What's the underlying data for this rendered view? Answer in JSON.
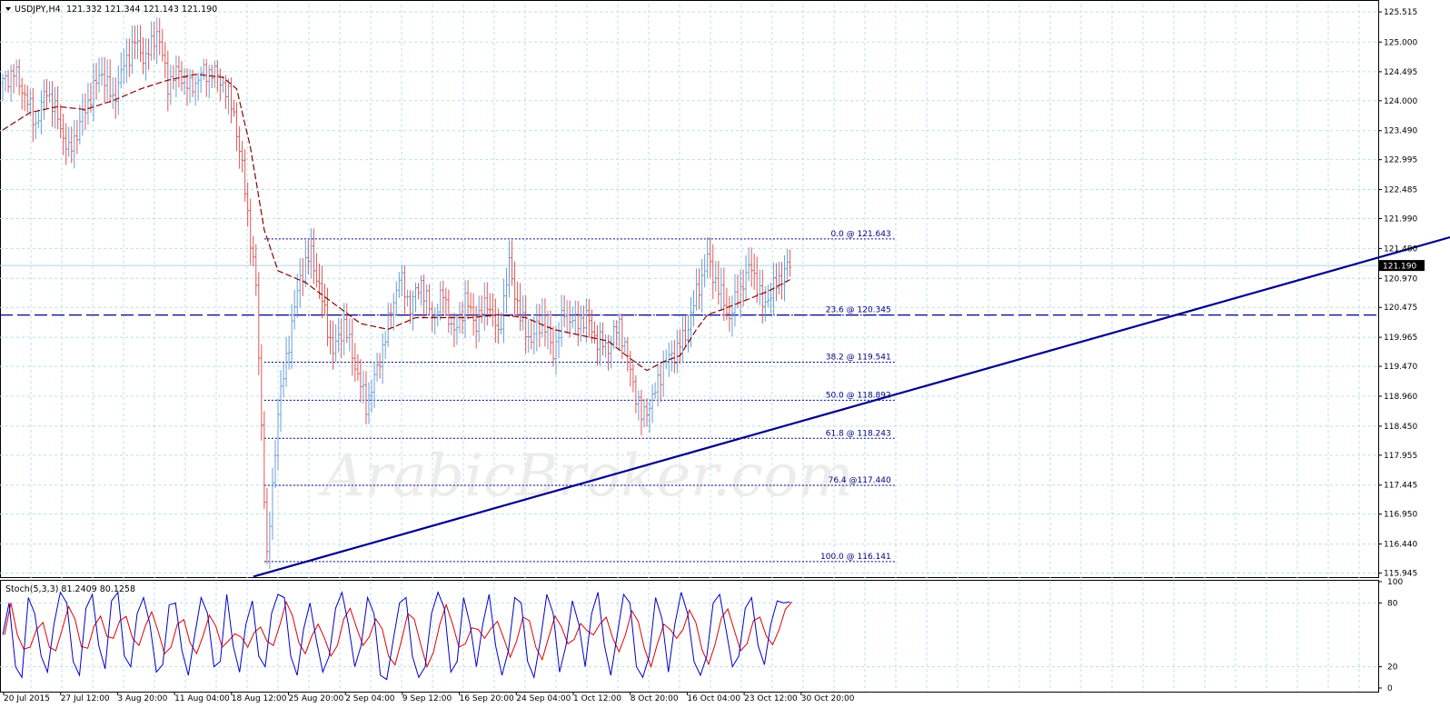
{
  "header": {
    "symbol": "USDJPY,H4",
    "ohlc": "121.332 121.344 121.143 121.190"
  },
  "watermark": "ArabicBroker.com",
  "colors": {
    "bull": "#6a9fd6",
    "bear": "#e05858",
    "ma": "#8b0000",
    "trend": "#00008b",
    "fib": "#000080",
    "grid": "#b8e0ea",
    "stoch_main": "#0000cc",
    "stoch_signal": "#e00000"
  },
  "chart_data": {
    "type": "candlestick",
    "price_axis": {
      "ticks": [
        "125.515",
        "125.000",
        "124.495",
        "124.000",
        "123.490",
        "122.995",
        "122.485",
        "121.990",
        "121.480",
        "120.970",
        "120.475",
        "119.965",
        "119.470",
        "118.960",
        "118.450",
        "117.955",
        "117.445",
        "116.950",
        "116.440",
        "115.945"
      ],
      "range": [
        115.86,
        125.64
      ],
      "current_price": "121.190"
    },
    "time_axis": {
      "labels": [
        "20 Jul 2015",
        "27 Jul 12:00",
        "3 Aug 20:00",
        "11 Aug 04:00",
        "18 Aug 12:00",
        "25 Aug 20:00",
        "2 Sep 04:00",
        "9 Sep 12:00",
        "16 Sep 20:00",
        "24 Sep 04:00",
        "1 Oct 12:00",
        "8 Oct 20:00",
        "16 Oct 04:00",
        "23 Oct 12:00",
        "30 Oct 20:00"
      ]
    },
    "price_path": [
      [
        0,
        124.3
      ],
      [
        4,
        124.5
      ],
      [
        8,
        124.1
      ],
      [
        12,
        123.6
      ],
      [
        16,
        124.2
      ],
      [
        20,
        123.7
      ],
      [
        24,
        123.1
      ],
      [
        28,
        123.6
      ],
      [
        32,
        124.1
      ],
      [
        36,
        124.5
      ],
      [
        40,
        124.0
      ],
      [
        44,
        124.6
      ],
      [
        48,
        125.0
      ],
      [
        52,
        124.7
      ],
      [
        56,
        125.2
      ],
      [
        60,
        124.3
      ],
      [
        64,
        124.5
      ],
      [
        68,
        124.2
      ],
      [
        72,
        124.45
      ],
      [
        76,
        124.5
      ],
      [
        80,
        124.3
      ],
      [
        84,
        123.8
      ],
      [
        88,
        122.5
      ],
      [
        92,
        120.8
      ],
      [
        96,
        116.14
      ],
      [
        100,
        118.7
      ],
      [
        104,
        119.9
      ],
      [
        108,
        121.0
      ],
      [
        112,
        121.4
      ],
      [
        116,
        120.6
      ],
      [
        120,
        119.7
      ],
      [
        124,
        120.2
      ],
      [
        128,
        119.5
      ],
      [
        132,
        118.8
      ],
      [
        136,
        119.4
      ],
      [
        140,
        120.2
      ],
      [
        144,
        121.0
      ],
      [
        148,
        120.5
      ],
      [
        152,
        120.9
      ],
      [
        156,
        120.3
      ],
      [
        160,
        120.7
      ],
      [
        164,
        120.0
      ],
      [
        168,
        120.6
      ],
      [
        172,
        120.2
      ],
      [
        176,
        120.6
      ],
      [
        180,
        120.0
      ],
      [
        184,
        121.2
      ],
      [
        188,
        120.3
      ],
      [
        192,
        119.9
      ],
      [
        196,
        120.3
      ],
      [
        200,
        119.7
      ],
      [
        204,
        120.4
      ],
      [
        208,
        120.2
      ],
      [
        212,
        120.3
      ],
      [
        216,
        119.9
      ],
      [
        220,
        119.8
      ],
      [
        224,
        120.2
      ],
      [
        228,
        119.4
      ],
      [
        232,
        118.6
      ],
      [
        236,
        118.9
      ],
      [
        240,
        119.5
      ],
      [
        244,
        119.7
      ],
      [
        248,
        120.0
      ],
      [
        252,
        120.7
      ],
      [
        256,
        121.3
      ],
      [
        260,
        120.8
      ],
      [
        264,
        120.3
      ],
      [
        268,
        120.8
      ],
      [
        272,
        121.2
      ],
      [
        276,
        120.5
      ],
      [
        280,
        120.8
      ],
      [
        284,
        121.1
      ],
      [
        286,
        121.19
      ]
    ],
    "ma_path": [
      [
        0,
        123.5
      ],
      [
        10,
        123.8
      ],
      [
        20,
        123.9
      ],
      [
        30,
        123.85
      ],
      [
        40,
        124.0
      ],
      [
        50,
        124.2
      ],
      [
        60,
        124.35
      ],
      [
        70,
        124.45
      ],
      [
        80,
        124.4
      ],
      [
        85,
        124.2
      ],
      [
        90,
        123.2
      ],
      [
        95,
        121.8
      ],
      [
        100,
        121.1
      ],
      [
        110,
        120.9
      ],
      [
        120,
        120.55
      ],
      [
        130,
        120.2
      ],
      [
        140,
        120.1
      ],
      [
        150,
        120.3
      ],
      [
        160,
        120.3
      ],
      [
        170,
        120.3
      ],
      [
        180,
        120.35
      ],
      [
        190,
        120.3
      ],
      [
        200,
        120.1
      ],
      [
        210,
        120.0
      ],
      [
        220,
        119.9
      ],
      [
        228,
        119.6
      ],
      [
        234,
        119.4
      ],
      [
        240,
        119.55
      ],
      [
        246,
        119.65
      ],
      [
        252,
        120.1
      ],
      [
        256,
        120.35
      ],
      [
        262,
        120.45
      ],
      [
        270,
        120.6
      ],
      [
        278,
        120.75
      ],
      [
        286,
        120.95
      ]
    ],
    "fibonacci": [
      {
        "label": "0.0 @ 121.643",
        "price": 121.643
      },
      {
        "label": "23.6 @ 120.345",
        "price": 120.345
      },
      {
        "label": "38.2 @ 119.541",
        "price": 119.541
      },
      {
        "label": "50.0 @ 118.892",
        "price": 118.892
      },
      {
        "label": "61.8 @ 118.243",
        "price": 118.243
      },
      {
        "label": "76.4 @117.440",
        "price": 117.44
      },
      {
        "label": "100.0 @ 116.141",
        "price": 116.141
      }
    ],
    "support_line_price": 120.345,
    "trendline": {
      "from": [
        96,
        115.9
      ],
      "to": [
        300,
        121.3
      ]
    },
    "stochastic": {
      "title": "Stoch(5,3,3) 81.2409 80.1258",
      "levels": [
        "100",
        "80",
        "20",
        "0"
      ],
      "main": [
        50,
        80,
        20,
        10,
        85,
        70,
        30,
        15,
        60,
        90,
        80,
        25,
        12,
        75,
        88,
        40,
        18,
        82,
        90,
        30,
        20,
        70,
        85,
        60,
        15,
        22,
        78,
        80,
        35,
        12,
        50,
        85,
        70,
        20,
        25,
        88,
        40,
        15,
        60,
        82,
        30,
        20,
        70,
        88,
        85,
        30,
        12,
        55,
        80,
        45,
        15,
        30,
        75,
        90,
        60,
        20,
        40,
        85,
        70,
        12,
        8,
        45,
        80,
        85,
        30,
        10,
        20,
        70,
        90,
        75,
        15,
        25,
        85,
        60,
        20,
        60,
        88,
        40,
        12,
        35,
        85,
        80,
        25,
        10,
        45,
        88,
        70,
        15,
        40,
        82,
        60,
        20,
        70,
        90,
        40,
        12,
        50,
        88,
        80,
        20,
        10,
        30,
        85,
        65,
        15,
        60,
        90,
        70,
        25,
        12,
        30,
        80,
        88,
        55,
        20,
        30,
        75,
        85,
        40,
        22,
        60,
        82,
        80,
        81
      ]
    }
  }
}
